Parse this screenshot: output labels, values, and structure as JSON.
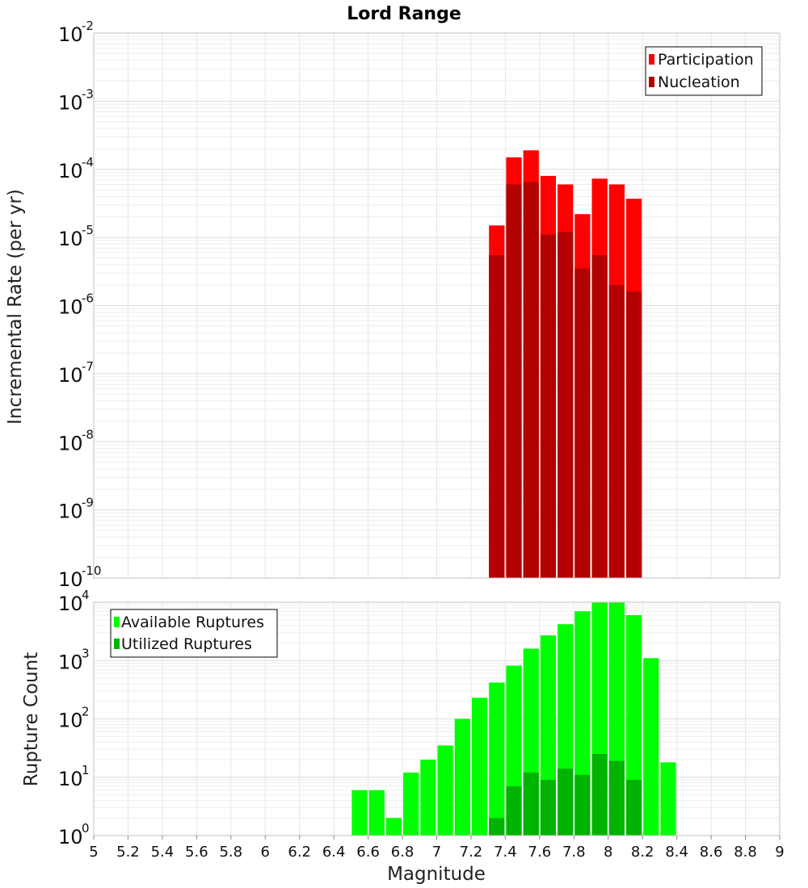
{
  "chart_data": [
    {
      "type": "bar",
      "title": "Lord Range",
      "ylabel": "Incremental Rate (per yr)",
      "xlabel": "",
      "y_scale": "log",
      "ylim": [
        1e-10,
        0.01
      ],
      "xlim": [
        5,
        9
      ],
      "grid": true,
      "legend": "top-right",
      "y_ticks": [
        {
          "base": "10",
          "exp": "-2"
        },
        {
          "base": "10",
          "exp": "-3"
        },
        {
          "base": "10",
          "exp": "-4"
        },
        {
          "base": "10",
          "exp": "-5"
        },
        {
          "base": "10",
          "exp": "-6"
        },
        {
          "base": "10",
          "exp": "-7"
        },
        {
          "base": "10",
          "exp": "-8"
        },
        {
          "base": "10",
          "exp": "-9"
        },
        {
          "base": "10",
          "exp": "-10"
        }
      ],
      "x": [
        7.35,
        7.45,
        7.55,
        7.65,
        7.75,
        7.85,
        7.95,
        8.05,
        8.15
      ],
      "series": [
        {
          "name": "Participation",
          "color": "#ff0000",
          "values": [
            1.5e-05,
            0.00015,
            0.00019,
            8e-05,
            6e-05,
            2.2e-05,
            7.3e-05,
            6e-05,
            3.7e-05
          ]
        },
        {
          "name": "Nucleation",
          "color": "#b30000",
          "values": [
            5.5e-06,
            6e-05,
            6.5e-05,
            1.1e-05,
            1.2e-05,
            3.5e-06,
            5.5e-06,
            2e-06,
            1.6e-06
          ]
        }
      ]
    },
    {
      "type": "bar",
      "title": "",
      "ylabel": "Rupture Count",
      "xlabel": "Magnitude",
      "y_scale": "log",
      "ylim": [
        1,
        10000
      ],
      "xlim": [
        5,
        9
      ],
      "grid": true,
      "legend": "top-left",
      "y_ticks": [
        {
          "base": "10",
          "exp": "4"
        },
        {
          "base": "10",
          "exp": "3"
        },
        {
          "base": "10",
          "exp": "2"
        },
        {
          "base": "10",
          "exp": "1"
        },
        {
          "base": "10",
          "exp": "0"
        }
      ],
      "x_ticks": [
        "5",
        "5.2",
        "5.4",
        "5.6",
        "5.8",
        "6",
        "6.2",
        "6.4",
        "6.6",
        "6.8",
        "7",
        "7.2",
        "7.4",
        "7.6",
        "7.8",
        "8",
        "8.2",
        "8.4",
        "8.6",
        "8.8",
        "9"
      ],
      "x": [
        6.55,
        6.65,
        6.75,
        6.85,
        6.95,
        7.05,
        7.15,
        7.25,
        7.35,
        7.45,
        7.55,
        7.65,
        7.75,
        7.85,
        7.95,
        8.05,
        8.15,
        8.25,
        8.35
      ],
      "series": [
        {
          "name": "Available Ruptures",
          "color": "#00ff00",
          "values": [
            6,
            6,
            2,
            12,
            20,
            35,
            100,
            230,
            420,
            820,
            1600,
            2700,
            4200,
            7000,
            10000,
            10000,
            6000,
            1100,
            18
          ]
        },
        {
          "name": "Utilized Ruptures",
          "color": "#00b300",
          "values": [
            0,
            0,
            0,
            0,
            0,
            0,
            0,
            0,
            2,
            7,
            12,
            9,
            14,
            11,
            25,
            19,
            9,
            0,
            0
          ]
        }
      ]
    }
  ]
}
